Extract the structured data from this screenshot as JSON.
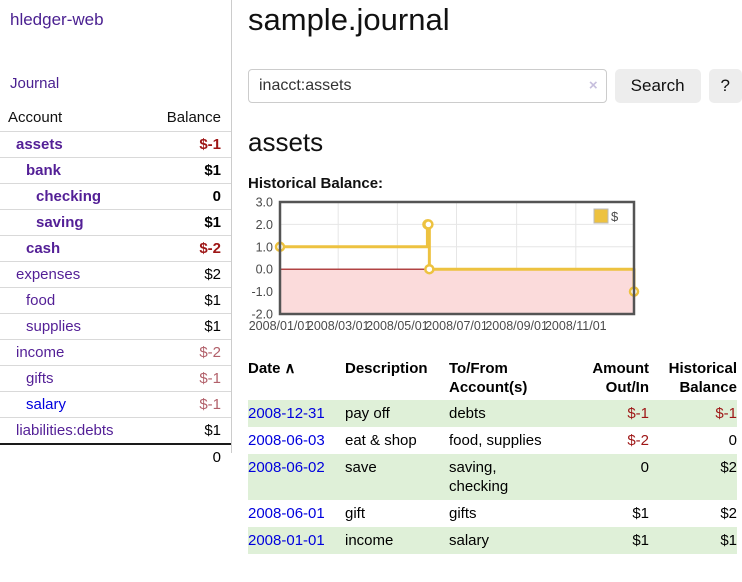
{
  "sidebar": {
    "app_title": "hledger-web",
    "journal_link": "Journal",
    "table": {
      "headers": {
        "account": "Account",
        "balance": "Balance"
      },
      "accounts": [
        {
          "name": "assets",
          "balance": "$-1",
          "indent": 1,
          "bold": true,
          "balance_style": "neg"
        },
        {
          "name": "bank",
          "balance": "$1",
          "indent": 2,
          "bold": true,
          "balance_style": ""
        },
        {
          "name": "checking",
          "balance": "0",
          "indent": 3,
          "bold": true,
          "balance_style": ""
        },
        {
          "name": "saving",
          "balance": "$1",
          "indent": 3,
          "bold": true,
          "balance_style": ""
        },
        {
          "name": "cash",
          "balance": "$-2",
          "indent": 2,
          "bold": true,
          "balance_style": "neg"
        },
        {
          "name": "expenses",
          "balance": "$2",
          "indent": 1,
          "bold": false,
          "balance_style": ""
        },
        {
          "name": "food",
          "balance": "$1",
          "indent": 2,
          "bold": false,
          "balance_style": ""
        },
        {
          "name": "supplies",
          "balance": "$1",
          "indent": 2,
          "bold": false,
          "balance_style": ""
        },
        {
          "name": "income",
          "balance": "$-2",
          "indent": 1,
          "bold": false,
          "balance_style": "neg-soft"
        },
        {
          "name": "gifts",
          "balance": "$-1",
          "indent": 2,
          "bold": false,
          "balance_style": "neg-soft"
        },
        {
          "name": "salary",
          "balance": "$-1",
          "indent": 2,
          "bold": false,
          "balance_style": "neg-soft",
          "link_style": "blue"
        },
        {
          "name": "liabilities:debts",
          "balance": "$1",
          "indent": 1,
          "bold": false,
          "balance_style": ""
        }
      ],
      "total": "0"
    }
  },
  "header": {
    "title": "sample.journal"
  },
  "search": {
    "query": "inacct:assets",
    "clear_icon": "×",
    "search_button": "Search",
    "help_button": "?"
  },
  "account_page": {
    "heading": "assets",
    "chart_label": "Historical Balance:"
  },
  "chart_data": {
    "type": "line",
    "title": "Historical Balance",
    "step": true,
    "series": [
      {
        "name": "$",
        "color": "#edc240",
        "points": [
          [
            "2008-01-01",
            1
          ],
          [
            "2008-06-01",
            2
          ],
          [
            "2008-06-02",
            2
          ],
          [
            "2008-06-03",
            0
          ],
          [
            "2008-12-31",
            -1
          ]
        ]
      }
    ],
    "xlim": [
      "2008-01-01",
      "2008-12-31"
    ],
    "ylim": [
      -2,
      3
    ],
    "x_ticks": [
      {
        "date": "2008-01-01",
        "label": "2008/01/01"
      },
      {
        "date": "2008-03-01",
        "label": "2008/03/01"
      },
      {
        "date": "2008-05-01",
        "label": "2008/05/01"
      },
      {
        "date": "2008-07-01",
        "label": "2008/07/01"
      },
      {
        "date": "2008-09-01",
        "label": "2008/09/01"
      },
      {
        "date": "2008-11-01",
        "label": "2008/11/01"
      }
    ],
    "y_ticks": [
      {
        "value": 3,
        "label": "3.0"
      },
      {
        "value": 2,
        "label": "2.0"
      },
      {
        "value": 1,
        "label": "1.0"
      },
      {
        "value": 0,
        "label": "0.0"
      },
      {
        "value": -1,
        "label": "-1.0"
      },
      {
        "value": -2,
        "label": "-2.0"
      }
    ],
    "legend_position": "top-right",
    "grid": true,
    "colors": {
      "line": "#edc240",
      "marker_fill": "#ffffff",
      "grid": "#e6e6e6",
      "border": "#545454",
      "negative_fill": "#fbdbdb",
      "zero_line": "#991111",
      "tick_text": "#4a4a4a",
      "legend_box_border": "#bbbbbb"
    }
  },
  "register": {
    "sort_icon": "∧",
    "columns": [
      {
        "key": "date",
        "label": "Date",
        "align": "left",
        "sorted": true
      },
      {
        "key": "desc",
        "label": "Description",
        "align": "left",
        "sorted": false
      },
      {
        "key": "accts",
        "label": "To/From Account(s)",
        "align": "left",
        "sorted": false
      },
      {
        "key": "amount",
        "label": "Amount Out/In",
        "align": "right",
        "sorted": false
      },
      {
        "key": "balance",
        "label": "Historical Balance",
        "align": "right",
        "sorted": false
      }
    ],
    "rows": [
      {
        "date": "2008-12-31",
        "description": "pay off",
        "accounts": "debts",
        "amount": "$-1",
        "balance": "$-1"
      },
      {
        "date": "2008-06-03",
        "description": "eat & shop",
        "accounts": "food, supplies",
        "amount": "$-2",
        "balance": "0"
      },
      {
        "date": "2008-06-02",
        "description": "save",
        "accounts": "saving, checking",
        "amount": "0",
        "balance": "$2"
      },
      {
        "date": "2008-06-01",
        "description": "gift",
        "accounts": "gifts",
        "amount": "$1",
        "balance": "$2"
      },
      {
        "date": "2008-01-01",
        "description": "income",
        "accounts": "salary",
        "amount": "$1",
        "balance": "$1"
      }
    ]
  }
}
